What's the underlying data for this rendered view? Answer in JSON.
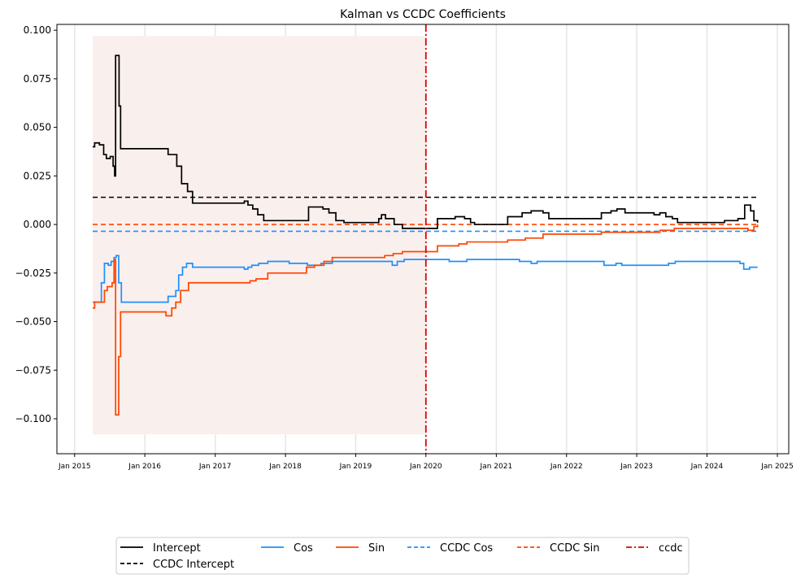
{
  "chart_data": {
    "type": "line",
    "title": "Kalman vs CCDC Coefficients",
    "xlabel": "",
    "ylabel": "",
    "x_range": [
      "2014-10-01",
      "2025-03-01"
    ],
    "ylim": [
      -0.118,
      0.103
    ],
    "y_ticks": [
      0.1,
      0.075,
      0.05,
      0.025,
      0.0,
      -0.025,
      -0.05,
      -0.075,
      -0.1
    ],
    "y_tick_labels": [
      "0.100",
      "0.075",
      "0.050",
      "0.025",
      "0.000",
      "−0.025",
      "−0.050",
      "−0.075",
      "−0.100"
    ],
    "x_ticks": [
      "2015-01-01",
      "2016-01-01",
      "2017-01-01",
      "2018-01-01",
      "2019-01-01",
      "2020-01-01",
      "2021-01-01",
      "2022-01-01",
      "2023-01-01",
      "2024-01-01",
      "2025-01-01"
    ],
    "x_tick_labels": [
      "Jan 2015",
      "Jan 2016",
      "Jan 2017",
      "Jan 2018",
      "Jan 2019",
      "Jan 2020",
      "Jan 2021",
      "Jan 2022",
      "Jan 2023",
      "Jan 2024",
      "Jan 2025"
    ],
    "grid": "vertical-light",
    "shaded_region": {
      "x_start": "2015-04-05",
      "x_end": "2020-01-01",
      "y_start": -0.108,
      "y_end": 0.097,
      "color": "#f9efec"
    },
    "vertical_line": {
      "name": "ccdc",
      "x": "2020-01-01",
      "color": "#dd0000",
      "style": "dashdot"
    },
    "series": [
      {
        "name": "Intercept",
        "color": "#000000",
        "style": "solid",
        "kind": "step",
        "points": [
          [
            "2015-04-05",
            0.04
          ],
          [
            "2015-04-15",
            0.042
          ],
          [
            "2015-05-10",
            0.041
          ],
          [
            "2015-06-01",
            0.036
          ],
          [
            "2015-06-15",
            0.034
          ],
          [
            "2015-07-05",
            0.035
          ],
          [
            "2015-07-20",
            0.03
          ],
          [
            "2015-07-28",
            0.025
          ],
          [
            "2015-08-02",
            0.087
          ],
          [
            "2015-08-20",
            0.061
          ],
          [
            "2015-08-28",
            0.039
          ],
          [
            "2016-04-10",
            0.039
          ],
          [
            "2016-05-01",
            0.036
          ],
          [
            "2016-06-15",
            0.03
          ],
          [
            "2016-07-10",
            0.021
          ],
          [
            "2016-08-10",
            0.017
          ],
          [
            "2016-09-05",
            0.011
          ],
          [
            "2017-06-01",
            0.012
          ],
          [
            "2017-06-20",
            0.01
          ],
          [
            "2017-07-15",
            0.008
          ],
          [
            "2017-08-10",
            0.005
          ],
          [
            "2017-09-10",
            0.002
          ],
          [
            "2018-05-01",
            0.009
          ],
          [
            "2018-07-15",
            0.008
          ],
          [
            "2018-08-15",
            0.006
          ],
          [
            "2018-09-20",
            0.002
          ],
          [
            "2018-11-01",
            0.001
          ],
          [
            "2019-04-01",
            0.001
          ],
          [
            "2019-05-01",
            0.003
          ],
          [
            "2019-05-15",
            0.005
          ],
          [
            "2019-06-05",
            0.003
          ],
          [
            "2019-07-20",
            0.0
          ],
          [
            "2019-09-01",
            -0.002
          ],
          [
            "2020-01-01",
            -0.002
          ],
          [
            "2020-03-01",
            0.003
          ],
          [
            "2020-06-01",
            0.004
          ],
          [
            "2020-07-20",
            0.003
          ],
          [
            "2020-08-20",
            0.001
          ],
          [
            "2020-09-10",
            0.0
          ],
          [
            "2021-03-01",
            0.004
          ],
          [
            "2021-05-15",
            0.006
          ],
          [
            "2021-07-01",
            0.007
          ],
          [
            "2021-09-01",
            0.006
          ],
          [
            "2021-10-01",
            0.003
          ],
          [
            "2022-06-01",
            0.003
          ],
          [
            "2022-07-01",
            0.006
          ],
          [
            "2022-08-20",
            0.007
          ],
          [
            "2022-09-20",
            0.008
          ],
          [
            "2022-11-01",
            0.006
          ],
          [
            "2023-04-01",
            0.005
          ],
          [
            "2023-05-01",
            0.006
          ],
          [
            "2023-06-01",
            0.004
          ],
          [
            "2023-07-05",
            0.003
          ],
          [
            "2023-08-01",
            0.001
          ],
          [
            "2024-04-01",
            0.002
          ],
          [
            "2024-06-10",
            0.003
          ],
          [
            "2024-07-15",
            0.01
          ],
          [
            "2024-08-15",
            0.007
          ],
          [
            "2024-09-01",
            0.002
          ],
          [
            "2024-09-20",
            0.001
          ]
        ]
      },
      {
        "name": "CCDC Intercept",
        "color": "#000000",
        "style": "dashed",
        "kind": "constant",
        "points": [
          [
            "2015-04-05",
            0.014
          ],
          [
            "2024-09-20",
            0.014
          ]
        ]
      },
      {
        "name": "Cos",
        "color": "#1e90ff",
        "style": "solid",
        "kind": "step",
        "points": [
          [
            "2015-04-05",
            -0.04
          ],
          [
            "2015-05-20",
            -0.03
          ],
          [
            "2015-06-05",
            -0.02
          ],
          [
            "2015-06-25",
            -0.021
          ],
          [
            "2015-07-10",
            -0.019
          ],
          [
            "2015-07-25",
            -0.017
          ],
          [
            "2015-08-05",
            -0.016
          ],
          [
            "2015-08-18",
            -0.03
          ],
          [
            "2015-09-01",
            -0.04
          ],
          [
            "2016-04-15",
            -0.04
          ],
          [
            "2016-05-01",
            -0.037
          ],
          [
            "2016-06-10",
            -0.034
          ],
          [
            "2016-06-25",
            -0.026
          ],
          [
            "2016-07-15",
            -0.022
          ],
          [
            "2016-08-05",
            -0.02
          ],
          [
            "2016-09-05",
            -0.022
          ],
          [
            "2017-06-01",
            -0.023
          ],
          [
            "2017-06-20",
            -0.022
          ],
          [
            "2017-07-10",
            -0.021
          ],
          [
            "2017-08-15",
            -0.02
          ],
          [
            "2017-10-01",
            -0.019
          ],
          [
            "2018-01-20",
            -0.02
          ],
          [
            "2018-04-15",
            -0.02
          ],
          [
            "2018-04-25",
            -0.021
          ],
          [
            "2018-07-05",
            -0.02
          ],
          [
            "2018-09-01",
            -0.019
          ],
          [
            "2019-06-01",
            -0.019
          ],
          [
            "2019-07-10",
            -0.021
          ],
          [
            "2019-08-05",
            -0.019
          ],
          [
            "2019-09-10",
            -0.018
          ],
          [
            "2020-03-01",
            -0.018
          ],
          [
            "2020-05-01",
            -0.019
          ],
          [
            "2020-08-01",
            -0.018
          ],
          [
            "2021-05-01",
            -0.019
          ],
          [
            "2021-07-01",
            -0.02
          ],
          [
            "2021-08-01",
            -0.019
          ],
          [
            "2022-06-01",
            -0.019
          ],
          [
            "2022-07-15",
            -0.021
          ],
          [
            "2022-08-15",
            -0.021
          ],
          [
            "2022-09-15",
            -0.02
          ],
          [
            "2022-10-15",
            -0.021
          ],
          [
            "2023-06-01",
            -0.021
          ],
          [
            "2023-06-15",
            -0.02
          ],
          [
            "2023-07-20",
            -0.019
          ],
          [
            "2024-05-01",
            -0.019
          ],
          [
            "2024-06-20",
            -0.02
          ],
          [
            "2024-07-10",
            -0.023
          ],
          [
            "2024-08-10",
            -0.022
          ],
          [
            "2024-09-20",
            -0.022
          ]
        ]
      },
      {
        "name": "CCDC Cos",
        "color": "#1e90ff",
        "style": "dashed",
        "kind": "constant",
        "points": [
          [
            "2015-04-05",
            -0.0035
          ],
          [
            "2024-09-20",
            -0.0035
          ]
        ]
      },
      {
        "name": "Sin",
        "color": "#ff4500",
        "style": "solid",
        "kind": "step",
        "points": [
          [
            "2015-04-05",
            -0.043
          ],
          [
            "2015-04-15",
            -0.04
          ],
          [
            "2015-06-05",
            -0.034
          ],
          [
            "2015-06-20",
            -0.032
          ],
          [
            "2015-07-15",
            -0.03
          ],
          [
            "2015-07-25",
            -0.018
          ],
          [
            "2015-08-02",
            -0.098
          ],
          [
            "2015-08-18",
            -0.068
          ],
          [
            "2015-08-28",
            -0.045
          ],
          [
            "2016-04-01",
            -0.045
          ],
          [
            "2016-04-20",
            -0.047
          ],
          [
            "2016-05-20",
            -0.043
          ],
          [
            "2016-06-10",
            -0.04
          ],
          [
            "2016-07-05",
            -0.034
          ],
          [
            "2016-08-15",
            -0.03
          ],
          [
            "2017-06-01",
            -0.03
          ],
          [
            "2017-07-01",
            -0.029
          ],
          [
            "2017-08-01",
            -0.028
          ],
          [
            "2017-10-01",
            -0.025
          ],
          [
            "2018-04-20",
            -0.022
          ],
          [
            "2018-06-01",
            -0.021
          ],
          [
            "2018-07-20",
            -0.019
          ],
          [
            "2018-09-01",
            -0.017
          ],
          [
            "2019-06-01",
            -0.016
          ],
          [
            "2019-07-15",
            -0.015
          ],
          [
            "2019-09-01",
            -0.014
          ],
          [
            "2020-03-01",
            -0.011
          ],
          [
            "2020-06-20",
            -0.01
          ],
          [
            "2020-08-01",
            -0.009
          ],
          [
            "2021-03-01",
            -0.008
          ],
          [
            "2021-06-01",
            -0.007
          ],
          [
            "2021-09-01",
            -0.005
          ],
          [
            "2022-05-01",
            -0.005
          ],
          [
            "2022-07-01",
            -0.004
          ],
          [
            "2023-05-01",
            -0.003
          ],
          [
            "2023-07-15",
            -0.002
          ],
          [
            "2024-06-01",
            -0.002
          ],
          [
            "2024-08-01",
            -0.003
          ],
          [
            "2024-09-01",
            -0.001
          ],
          [
            "2024-09-20",
            0.0
          ]
        ]
      },
      {
        "name": "CCDC Sin",
        "color": "#ff4500",
        "style": "dashed",
        "kind": "constant",
        "points": [
          [
            "2015-04-05",
            0.0
          ],
          [
            "2024-09-20",
            0.0
          ]
        ]
      }
    ],
    "legend": {
      "position": "bottom-center",
      "columns": 6,
      "entries": [
        {
          "label": "Intercept",
          "color": "#000000",
          "style": "solid"
        },
        {
          "label": "Cos",
          "color": "#1e90ff",
          "style": "solid"
        },
        {
          "label": "Sin",
          "color": "#ff4500",
          "style": "solid"
        },
        {
          "label": "CCDC Cos",
          "color": "#1e90ff",
          "style": "dashed"
        },
        {
          "label": "CCDC Sin",
          "color": "#ff4500",
          "style": "dashed"
        },
        {
          "label": "ccdc",
          "color": "#dd0000",
          "style": "dashdot"
        },
        {
          "label": "CCDC Intercept",
          "color": "#000000",
          "style": "dashed"
        }
      ]
    }
  }
}
